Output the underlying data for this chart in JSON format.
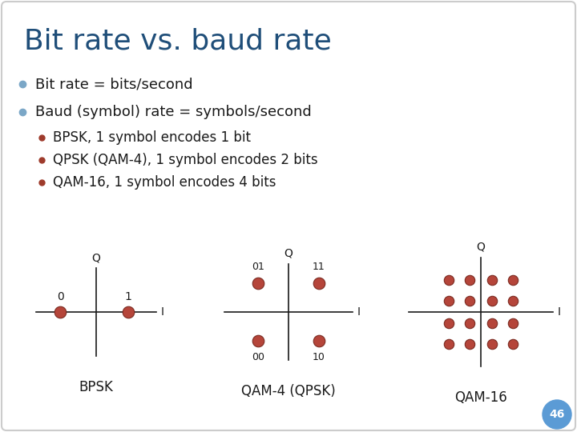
{
  "title": "Bit rate vs. baud rate",
  "title_color": "#1F4E79",
  "background_color": "#FFFFFF",
  "bullet_color": "#7BA7C7",
  "sub_bullet_color": "#9E3B2C",
  "text_color": "#1A1A1A",
  "text_fontsize": 13,
  "sub_text_fontsize": 12,
  "bullets": [
    "Bit rate = bits/second",
    "Baud (symbol) rate = symbols/second"
  ],
  "sub_bullets": [
    "BPSK, 1 symbol encodes 1 bit",
    "QPSK (QAM-4), 1 symbol encodes 2 bits",
    "QAM-16, 1 symbol encodes 4 bits"
  ],
  "dot_color": "#B5453A",
  "axis_color": "#1A1A1A",
  "label_color": "#1A1A1A",
  "diagram_labels": [
    "BPSK",
    "QAM-4 (QPSK)",
    "QAM-16"
  ],
  "page_number": "46",
  "page_circle_color": "#5B9BD5",
  "page_text_color": "#ffffff",
  "border_color": "#CCCCCC",
  "title_fontsize": 26
}
